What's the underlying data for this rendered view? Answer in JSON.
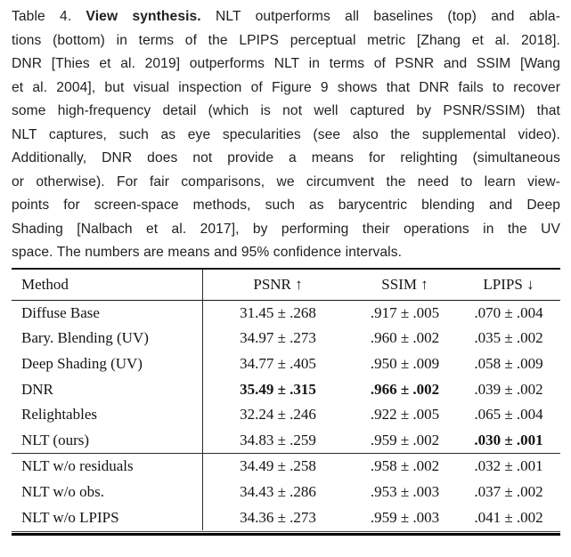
{
  "caption": {
    "label": "Table 4.",
    "title": "View synthesis.",
    "lines": [
      [
        {
          "text": "Table 4. ",
          "bold": false
        },
        {
          "text": "View synthesis.",
          "bold": true
        },
        {
          "text": " NLT outperforms all baselines (top) and abla-",
          "bold": false
        }
      ],
      [
        {
          "text": "tions (bottom) in terms of the LPIPS perceptual metric [Zhang et al. 2018].",
          "bold": false
        }
      ],
      [
        {
          "text": "DNR [Thies et al. 2019] outperforms NLT in terms of PSNR and SSIM [Wang",
          "bold": false
        }
      ],
      [
        {
          "text": "et al. 2004], but visual inspection of Figure 9 shows that DNR fails to recover",
          "bold": false
        }
      ],
      [
        {
          "text": "some high-frequency detail (which is not well captured by PSNR/SSIM) that",
          "bold": false
        }
      ],
      [
        {
          "text": "NLT captures, such as eye specularities (see also the supplemental video).",
          "bold": false
        }
      ],
      [
        {
          "text": "Additionally, DNR does not provide a means for relighting (simultaneous",
          "bold": false
        }
      ],
      [
        {
          "text": "or otherwise). For fair comparisons, we circumvent the need to learn view-",
          "bold": false
        }
      ],
      [
        {
          "text": "points for screen-space methods, such as barycentric blending and Deep",
          "bold": false
        }
      ],
      [
        {
          "text": "Shading [Nalbach et al. 2017], by performing their operations in the UV",
          "bold": false
        }
      ],
      [
        {
          "text": "space. The numbers are means and 95% confidence intervals.",
          "bold": false
        }
      ]
    ]
  },
  "table": {
    "columns": [
      {
        "label": "Method"
      },
      {
        "label": "PSNR ↑"
      },
      {
        "label": "SSIM ↑"
      },
      {
        "label": "LPIPS ↓"
      }
    ],
    "sections": [
      {
        "name": "baselines",
        "rows": [
          {
            "method": "Diffuse Base",
            "psnr": "31.45 ± .268",
            "ssim": ".917 ± .005",
            "lpips": ".070 ± .004",
            "bold": []
          },
          {
            "method": "Bary. Blending (UV)",
            "psnr": "34.97 ± .273",
            "ssim": ".960 ± .002",
            "lpips": ".035 ± .002",
            "bold": []
          },
          {
            "method": "Deep Shading (UV)",
            "psnr": "34.77 ± .405",
            "ssim": ".950 ± .009",
            "lpips": ".058 ± .009",
            "bold": []
          },
          {
            "method": "DNR",
            "psnr": "35.49 ± .315",
            "ssim": ".966 ± .002",
            "lpips": ".039 ± .002",
            "bold": [
              "psnr",
              "ssim"
            ]
          },
          {
            "method": "Relightables",
            "psnr": "32.24 ± .246",
            "ssim": ".922 ± .005",
            "lpips": ".065 ± .004",
            "bold": []
          },
          {
            "method": "NLT (ours)",
            "psnr": "34.83 ± .259",
            "ssim": ".959 ± .002",
            "lpips": ".030 ± .001",
            "bold": [
              "lpips"
            ]
          }
        ]
      },
      {
        "name": "ablations",
        "rows": [
          {
            "method": "NLT w/o residuals",
            "psnr": "34.49 ± .258",
            "ssim": ".958 ± .002",
            "lpips": ".032 ± .001",
            "bold": []
          },
          {
            "method": "NLT w/o obs.",
            "psnr": "34.43 ± .286",
            "ssim": ".953 ± .003",
            "lpips": ".037 ± .002",
            "bold": []
          },
          {
            "method": "NLT w/o LPIPS",
            "psnr": "34.36 ± .273",
            "ssim": ".959 ± .003",
            "lpips": ".041 ± .002",
            "bold": []
          }
        ]
      }
    ]
  }
}
